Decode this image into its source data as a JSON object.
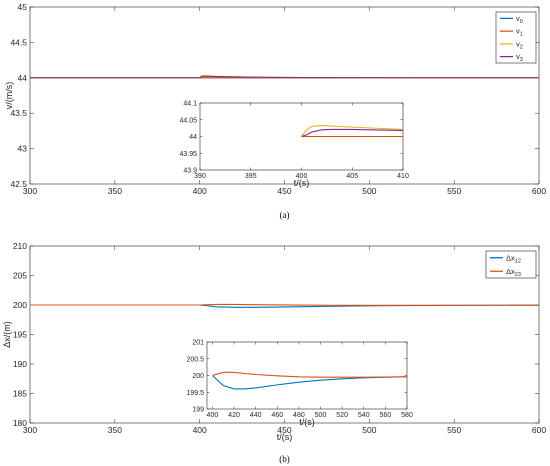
{
  "chart_data": [
    {
      "type": "line",
      "caption": "(a)",
      "ylabel": "v/(m/s)",
      "xlabel": "",
      "xlim": [
        300,
        600
      ],
      "ylim": [
        42.5,
        45
      ],
      "xticks": [
        "300",
        "350",
        "400",
        "450",
        "500",
        "550",
        "600"
      ],
      "yticks": [
        "42.5",
        "43",
        "43.5",
        "44",
        "44.5",
        "45"
      ],
      "legend_position": "top-right",
      "series": [
        {
          "name": "v0",
          "base": "v",
          "sub": "0",
          "color": "#0072BD",
          "x": [
            300,
            400,
            600
          ],
          "y": [
            44,
            44,
            44
          ]
        },
        {
          "name": "v1",
          "base": "v",
          "sub": "1",
          "color": "#D95319",
          "x": [
            300,
            400,
            402,
            600
          ],
          "y": [
            44,
            44,
            44,
            44
          ]
        },
        {
          "name": "v2",
          "base": "v",
          "sub": "2",
          "color": "#EDB120",
          "x": [
            300,
            400,
            400.5,
            401,
            402,
            403,
            405,
            410,
            430,
            460,
            600
          ],
          "y": [
            44,
            44,
            44.02,
            44.03,
            44.033,
            44.031,
            44.028,
            44.021,
            44.01,
            44.003,
            44
          ]
        },
        {
          "name": "v3",
          "base": "v",
          "sub": "3",
          "color": "#7E2F8E",
          "x": [
            300,
            400,
            400.5,
            401,
            402,
            403,
            405,
            410,
            430,
            460,
            600
          ],
          "y": [
            44,
            44,
            44.005,
            44.013,
            44.02,
            44.021,
            44.021,
            44.018,
            44.009,
            44.003,
            44
          ]
        }
      ],
      "inset": {
        "xlim": [
          390,
          410
        ],
        "ylim": [
          43.9,
          44.1
        ],
        "xticks": [
          "390",
          "395",
          "400",
          "405",
          "410"
        ],
        "yticks": [
          "43.9",
          "43.95",
          "44",
          "44.05",
          "44.1"
        ]
      }
    },
    {
      "type": "line",
      "caption": "(b)",
      "ylabel": "Δx/(m)",
      "xlabel": "t/(s)",
      "xlim": [
        300,
        600
      ],
      "ylim": [
        180,
        210
      ],
      "xticks": [
        "300",
        "350",
        "400",
        "450",
        "500",
        "550",
        "600"
      ],
      "yticks": [
        "180",
        "185",
        "190",
        "195",
        "200",
        "205",
        "210"
      ],
      "legend_position": "top-right",
      "series": [
        {
          "name": "Δx12",
          "base": "Δx",
          "sub": "12",
          "color": "#0072BD",
          "x": [
            300,
            400,
            405,
            410,
            420,
            430,
            440,
            460,
            480,
            500,
            520,
            540,
            560,
            580,
            600
          ],
          "y": [
            200,
            200,
            199.85,
            199.7,
            199.6,
            199.6,
            199.63,
            199.72,
            199.8,
            199.86,
            199.9,
            199.93,
            199.95,
            199.96,
            199.97
          ]
        },
        {
          "name": "Δx23",
          "base": "Δx",
          "sub": "23",
          "color": "#D95319",
          "x": [
            300,
            400,
            405,
            410,
            415,
            420,
            430,
            440,
            460,
            480,
            500,
            540,
            580,
            600
          ],
          "y": [
            200,
            200,
            200.05,
            200.09,
            200.1,
            200.09,
            200.06,
            200.03,
            199.99,
            199.96,
            199.95,
            199.95,
            199.96,
            199.97
          ]
        }
      ],
      "inset": {
        "xlim": [
          395,
          580
        ],
        "ylim": [
          199,
          201
        ],
        "xticks": [
          "400",
          "420",
          "440",
          "460",
          "480",
          "500",
          "520",
          "540",
          "560",
          "580"
        ],
        "yticks": [
          "199",
          "199.5",
          "200",
          "200.5",
          "201"
        ]
      }
    }
  ]
}
